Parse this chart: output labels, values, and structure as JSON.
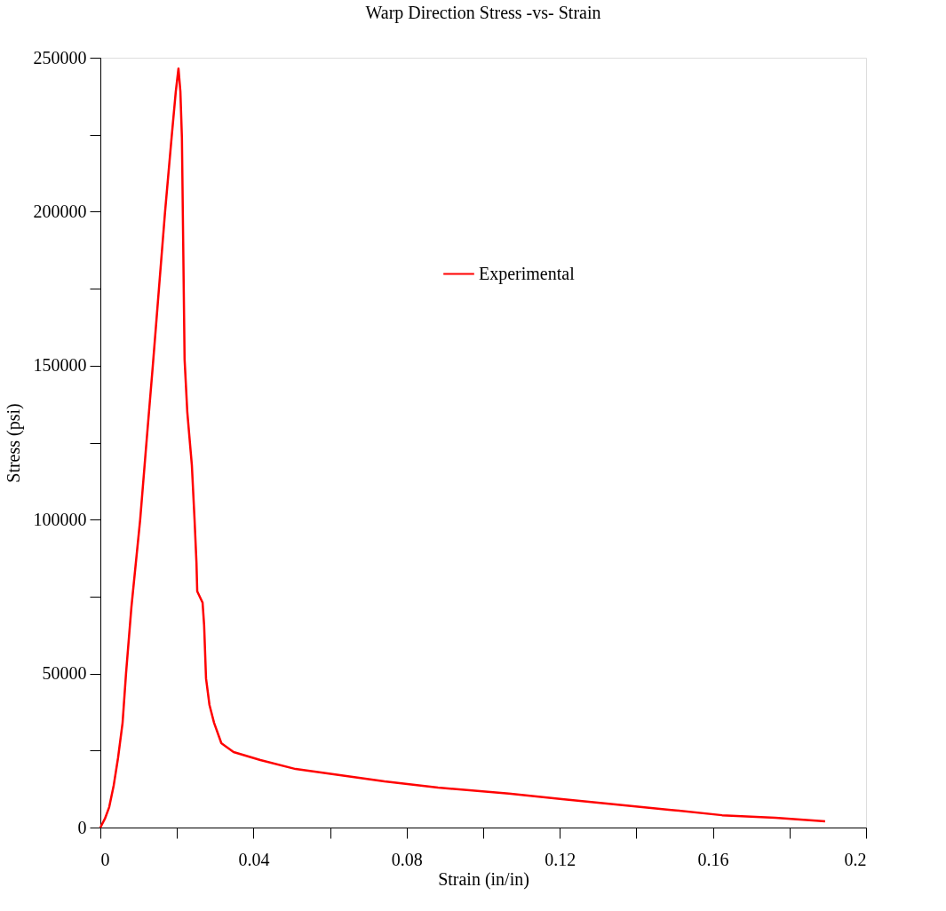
{
  "chart_data": {
    "type": "line",
    "title": "Warp Direction Stress -vs- Strain",
    "xlabel": "Strain (in/in)",
    "ylabel": "Stress (psi)",
    "xlim": [
      0,
      0.2
    ],
    "ylim": [
      0,
      250000
    ],
    "xticks": [
      0,
      {
        "value": 0.02,
        "label": null
      },
      0.04,
      {
        "value": 0.06,
        "label": null
      },
      0.08,
      {
        "value": 0.1,
        "label": null
      },
      0.12,
      {
        "value": 0.14,
        "label": null
      },
      0.16,
      {
        "value": 0.18,
        "label": null
      },
      0.2
    ],
    "yticks": [
      0,
      {
        "value": 25000,
        "label": null
      },
      50000,
      {
        "value": 75000,
        "label": null
      },
      100000,
      {
        "value": 125000,
        "label": null
      },
      150000,
      {
        "value": 175000,
        "label": null
      },
      200000,
      {
        "value": 225000,
        "label": null
      },
      250000
    ],
    "grid": false,
    "legend": "top right",
    "marker": "none",
    "line_style": "solid",
    "series": [
      {
        "name": "Experimental",
        "color": "#ff0000",
        "x": [
          0,
          0.0012,
          0.0023,
          0.0035,
          0.0046,
          0.0058,
          0.0067,
          0.0081,
          0.0104,
          0.0121,
          0.0137,
          0.0153,
          0.0169,
          0.0186,
          0.0197,
          0.0204,
          0.0209,
          0.0213,
          0.022,
          0.0227,
          0.0239,
          0.0246,
          0.0251,
          0.0253,
          0.0267,
          0.0271,
          0.0276,
          0.0285,
          0.0297,
          0.0316,
          0.0348,
          0.0418,
          0.051,
          0.0626,
          0.0742,
          0.0882,
          0.1067,
          0.1206,
          0.1346,
          0.1485,
          0.1624,
          0.1763,
          0.1893
        ],
        "values": [
          0,
          2900,
          6600,
          13800,
          22500,
          34000,
          50000,
          71500,
          100000,
          126000,
          150000,
          175000,
          200000,
          224000,
          239000,
          246500,
          239000,
          224000,
          152000,
          135000,
          117600,
          100000,
          86000,
          76700,
          73000,
          65700,
          48400,
          39800,
          34000,
          27400,
          24500,
          21900,
          19000,
          17000,
          15000,
          13000,
          11000,
          9200,
          7500,
          5800,
          4000,
          3200,
          2000
        ]
      }
    ]
  }
}
